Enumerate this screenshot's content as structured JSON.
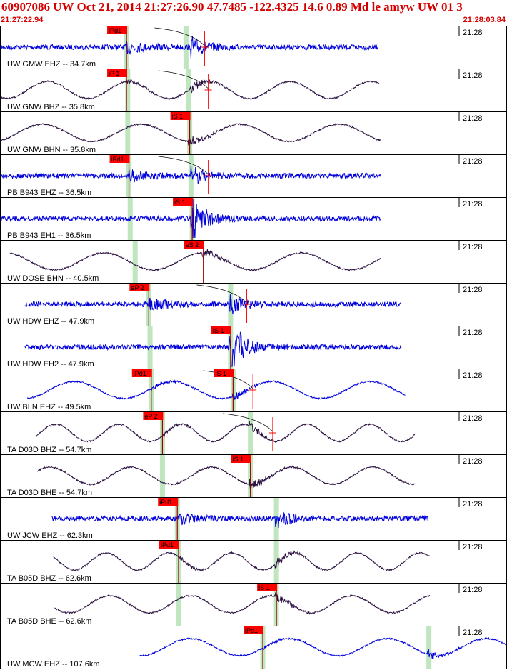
{
  "header": {
    "title": "60907086 UW Oct 21, 2014 21:27:26.90   47.7485 -122.4325 14.6 0.89 Md le amyw UW 01   3",
    "start_time": "21:27:22.94",
    "end_time": "21:28:03.84"
  },
  "colors": {
    "header_text": "#d40000",
    "trace_blue": "#0000dd",
    "trace_dark": "#2a1040",
    "pick_box": "#ff0000",
    "pick_window": "#bfe6bf",
    "frame": "#000000"
  },
  "chart_data": {
    "type": "seismogram",
    "x_units": "seconds after 21:27:22.94",
    "x_range": [
      0,
      40.9
    ],
    "minute_label": "21:28",
    "traces": [
      {
        "label": "UW GMW EHZ -- 34.7km",
        "color": "blue",
        "style": "hf",
        "start": 0.0,
        "end": 30.5,
        "onset": 10.2,
        "s_onset": 15.5,
        "picks": [
          {
            "label": "iPd1",
            "t": 10.2
          }
        ],
        "windows": [
          10.2,
          15.0
        ],
        "curve_end": 16.5,
        "error_mark": 16.5
      },
      {
        "label": "UW GNW BHZ -- 35.8km",
        "color": "dark",
        "style": "lf",
        "start": 0.0,
        "end": 30.6,
        "onset": 10.2,
        "s_onset": 15.4,
        "picks": [
          {
            "label": "iP 1",
            "t": 10.2
          }
        ],
        "windows": [
          10.3,
          15.2
        ],
        "curve_end": 16.8,
        "error_mark": 16.8
      },
      {
        "label": "UW GNW BHN -- 35.8km",
        "color": "dark",
        "style": "lf",
        "start": 0.0,
        "end": 30.7,
        "onset": 15.3,
        "s_onset": 15.3,
        "picks": [
          {
            "label": "iS 1",
            "t": 15.3
          }
        ],
        "windows": [
          10.3,
          15.3
        ]
      },
      {
        "label": "PB B943 EHZ -- 36.5km",
        "color": "blue",
        "style": "hf",
        "start": 0.0,
        "end": 30.7,
        "onset": 10.4,
        "s_onset": 15.4,
        "picks": [
          {
            "label": "iPd1",
            "t": 10.4
          }
        ],
        "windows": [
          10.4,
          15.4
        ],
        "curve_end": 16.8,
        "error_mark": 16.8
      },
      {
        "label": "PB B943 EH1 -- 36.5km",
        "color": "blue",
        "style": "hf",
        "start": 0.0,
        "end": 30.7,
        "onset": 15.5,
        "s_onset": 15.5,
        "picks": [
          {
            "label": "iS 1",
            "t": 15.5
          }
        ],
        "windows": [
          10.5,
          15.5
        ]
      },
      {
        "label": "UW DOSE BHN -- 40.5km",
        "color": "dark",
        "style": "lf",
        "start": 0.8,
        "end": 30.8,
        "onset": 16.4,
        "s_onset": 16.4,
        "picks": [
          {
            "label": "eS 2",
            "t": 16.4
          }
        ],
        "windows": [
          10.9
        ]
      },
      {
        "label": "UW HDW EHZ -- 47.9km",
        "color": "blue",
        "style": "hf",
        "start": 2.0,
        "end": 32.4,
        "onset": 12.0,
        "s_onset": 18.6,
        "picks": [
          {
            "label": "eP 2",
            "t": 12.0
          }
        ],
        "windows": [
          12.0,
          18.6
        ],
        "curve_end": 19.9,
        "error_mark": 19.9
      },
      {
        "label": "UW HDW EH2 -- 47.9km",
        "color": "blue",
        "style": "hf",
        "start": 2.0,
        "end": 32.4,
        "onset": 18.6,
        "s_onset": 18.6,
        "picks": [
          {
            "label": "iS 1",
            "t": 18.6
          }
        ],
        "windows": [
          12.1,
          18.6
        ]
      },
      {
        "label": "UW BLN EHZ -- 49.5km",
        "color": "blue",
        "style": "lf",
        "start": 2.2,
        "end": 32.7,
        "onset": 12.2,
        "s_onset": 18.8,
        "picks": [
          {
            "label": "iPd1",
            "t": 12.2
          },
          {
            "label": "iS 1",
            "t": 18.8
          }
        ],
        "windows": [
          12.2,
          18.8
        ],
        "curve_end": 20.4,
        "error_mark": 20.4
      },
      {
        "label": "TA D03D BHZ -- 54.7km",
        "color": "dark",
        "style": "lf",
        "start": 2.9,
        "end": 33.5,
        "onset": 13.1,
        "s_onset": 20.2,
        "picks": [
          {
            "label": "eP 2",
            "t": 13.1
          }
        ],
        "windows": [
          13.1,
          20.2
        ],
        "curve_end": 22.0,
        "error_mark": 22.0
      },
      {
        "label": "TA D03D BHE -- 54.7km",
        "color": "dark",
        "style": "lf",
        "start": 3.0,
        "end": 33.5,
        "onset": 20.2,
        "s_onset": 20.2,
        "picks": [
          {
            "label": "iS 1",
            "t": 20.2
          }
        ],
        "windows": [
          13.1,
          20.2
        ]
      },
      {
        "label": "UW JCW EHZ -- 62.3km",
        "color": "blue",
        "style": "hf",
        "start": 4.2,
        "end": 34.6,
        "onset": 14.3,
        "s_onset": 22.3,
        "picks": [
          {
            "label": "iPd1",
            "t": 14.3
          }
        ],
        "windows": [
          14.3,
          22.3
        ]
      },
      {
        "label": "TA B05D BHZ -- 62.6km",
        "color": "dark",
        "style": "lf",
        "start": 4.3,
        "end": 34.7,
        "onset": 14.4,
        "s_onset": 22.3,
        "picks": [
          {
            "label": "iPd1",
            "t": 14.4
          }
        ],
        "windows": [
          14.4,
          22.3
        ]
      },
      {
        "label": "TA B05D BHE -- 62.6km",
        "color": "dark",
        "style": "lf",
        "start": 4.4,
        "end": 34.7,
        "onset": 22.3,
        "s_onset": 22.3,
        "picks": [
          {
            "label": "iS 1",
            "t": 22.3
          }
        ],
        "windows": [
          14.4,
          22.3
        ]
      },
      {
        "label": "UW MCW EHZ -- 107.6km",
        "color": "blue",
        "style": "lf",
        "start": 11.2,
        "end": 40.9,
        "onset": 21.2,
        "s_onset": 34.6,
        "picks": [
          {
            "label": "iPd1",
            "t": 21.2
          }
        ],
        "windows": [
          21.2,
          34.6
        ]
      }
    ]
  }
}
